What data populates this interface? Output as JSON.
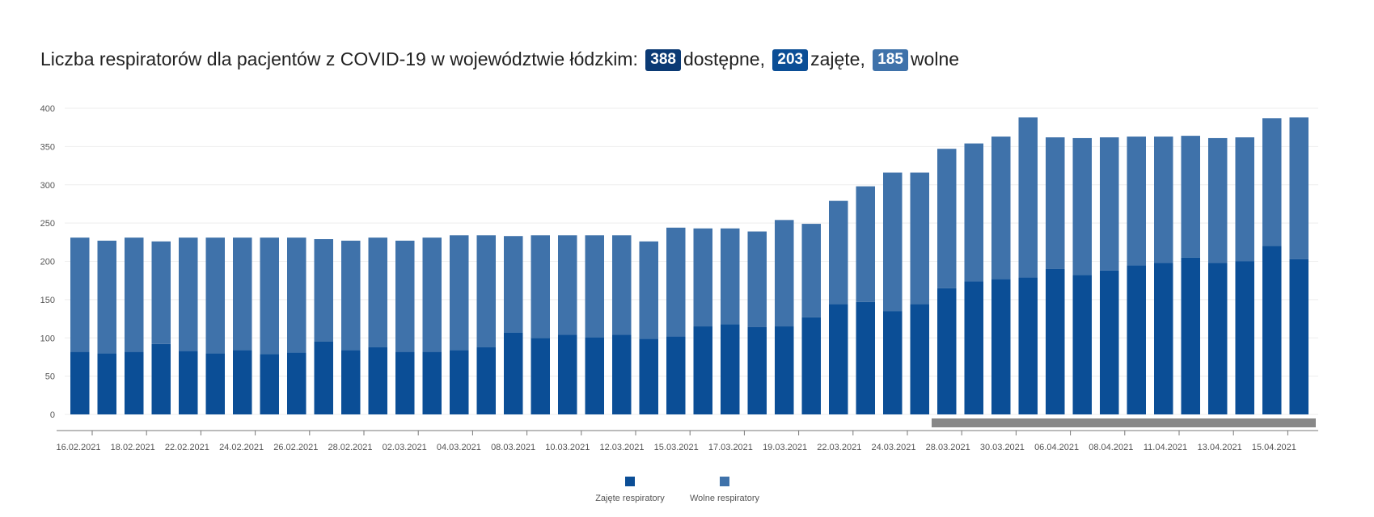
{
  "header": {
    "title_text": "Liczba respiratorów dla pacjentów z COVID-19 w województwie łódzkim:",
    "available_value": "388",
    "available_label": "dostępne,",
    "occupied_value": "203",
    "occupied_label": "zajęte,",
    "free_value": "185",
    "free_label": "wolne"
  },
  "colors": {
    "available_badge": "#0b3a74",
    "occupied": "#0b4e96",
    "free": "#3f72aa",
    "axis": "#777777",
    "grid": "#eeeeee",
    "scrollbar": "#888888"
  },
  "chart_data": {
    "type": "bar",
    "stacked": true,
    "x_tick_labels": [
      "16.02.2021",
      "18.02.2021",
      "22.02.2021",
      "24.02.2021",
      "26.02.2021",
      "28.02.2021",
      "02.03.2021",
      "04.03.2021",
      "08.03.2021",
      "10.03.2021",
      "12.03.2021",
      "15.03.2021",
      "17.03.2021",
      "19.03.2021",
      "22.03.2021",
      "24.03.2021",
      "28.03.2021",
      "30.03.2021",
      "06.04.2021",
      "08.04.2021",
      "11.04.2021",
      "13.04.2021",
      "15.04.2021"
    ],
    "y_ticks": [
      0,
      50,
      100,
      150,
      200,
      250,
      300,
      350,
      400
    ],
    "ylim": [
      0,
      400
    ],
    "grid": true,
    "legend_position": "bottom",
    "series": [
      {
        "name": "Zajęte respiratory",
        "values": [
          82,
          80,
          82,
          92,
          83,
          80,
          84,
          79,
          81,
          95,
          84,
          88,
          82,
          82,
          84,
          88,
          107,
          100,
          104,
          101,
          104,
          99,
          102,
          115,
          118,
          114,
          115,
          127,
          144,
          147,
          135,
          144,
          165,
          174,
          177,
          179,
          190,
          182,
          188,
          195,
          198,
          205,
          198,
          200,
          220,
          203
        ]
      },
      {
        "name": "Wolne respiratory",
        "values": [
          149,
          147,
          149,
          134,
          148,
          151,
          147,
          152,
          150,
          134,
          143,
          143,
          145,
          149,
          150,
          146,
          126,
          134,
          130,
          133,
          130,
          127,
          142,
          128,
          125,
          125,
          139,
          122,
          135,
          151,
          181,
          172,
          182,
          180,
          186,
          209,
          172,
          179,
          174,
          168,
          165,
          159,
          163,
          162,
          167,
          185
        ]
      }
    ]
  }
}
